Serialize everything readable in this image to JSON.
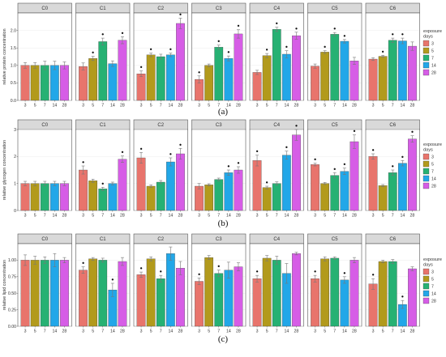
{
  "colors": {
    "days": [
      "#e8746c",
      "#b29a1c",
      "#26b173",
      "#22a7e8",
      "#d65de6"
    ],
    "strip_bg": "#d9d9d9",
    "panel_border": "#555555",
    "grid": "#ececec",
    "error": "#777777"
  },
  "legend": {
    "title": "exposure\ndays",
    "labels": [
      "3",
      "5",
      "7",
      "14",
      "28"
    ]
  },
  "chart_data": [
    {
      "type": "bar",
      "caption": "(a)",
      "ylabel": "relative protein concentration",
      "ylim": [
        0,
        2.5
      ],
      "yticks": [
        0.0,
        0.5,
        1.0,
        1.5,
        2.0
      ],
      "facets": [
        "C0",
        "C1",
        "C2",
        "C3",
        "C4",
        "C5",
        "C6"
      ],
      "categories": [
        "3",
        "5",
        "7",
        "14",
        "28"
      ],
      "values": [
        [
          1.0,
          1.0,
          1.0,
          1.0,
          1.0
        ],
        [
          0.97,
          1.2,
          1.68,
          1.05,
          1.72
        ],
        [
          0.76,
          1.3,
          1.25,
          1.3,
          2.2
        ],
        [
          0.6,
          1.0,
          1.52,
          1.2,
          1.9
        ],
        [
          0.8,
          1.28,
          2.03,
          1.32,
          1.85
        ],
        [
          0.98,
          1.38,
          1.89,
          1.69,
          1.13
        ],
        [
          1.18,
          1.26,
          1.72,
          1.7,
          1.55
        ]
      ],
      "errors": [
        [
          0.08,
          0.08,
          0.12,
          0.12,
          0.1
        ],
        [
          0.1,
          0.06,
          0.1,
          0.08,
          0.1
        ],
        [
          0.08,
          0.05,
          0.07,
          0.05,
          0.15
        ],
        [
          0.1,
          0.04,
          0.06,
          0.07,
          0.12
        ],
        [
          0.06,
          0.06,
          0.06,
          0.1,
          0.1
        ],
        [
          0.06,
          0.04,
          0.05,
          0.05,
          0.1
        ],
        [
          0.04,
          0.03,
          0.06,
          0.08,
          0.12
        ]
      ],
      "significant": [
        [
          false,
          false,
          false,
          false,
          false
        ],
        [
          false,
          true,
          true,
          false,
          true
        ],
        [
          true,
          true,
          false,
          true,
          true
        ],
        [
          true,
          false,
          true,
          true,
          true
        ],
        [
          false,
          true,
          true,
          true,
          true
        ],
        [
          false,
          true,
          true,
          true,
          false
        ],
        [
          false,
          true,
          true,
          true,
          false
        ]
      ]
    },
    {
      "type": "bar",
      "caption": "(b)",
      "ylabel": "relative glycogen concentration",
      "ylim": [
        0,
        3
      ],
      "yticks": [
        0,
        1,
        2,
        3
      ],
      "facets": [
        "C0",
        "C1",
        "C2",
        "C3",
        "C4",
        "C5",
        "C6"
      ],
      "categories": [
        "3",
        "5",
        "7",
        "14",
        "28"
      ],
      "values": [
        [
          1.0,
          1.0,
          1.0,
          1.0,
          1.0
        ],
        [
          1.5,
          1.1,
          0.8,
          1.0,
          1.9
        ],
        [
          1.95,
          0.9,
          1.05,
          1.8,
          2.1
        ],
        [
          0.9,
          0.95,
          1.15,
          1.4,
          1.5
        ],
        [
          1.85,
          0.85,
          1.0,
          2.05,
          2.8
        ],
        [
          1.7,
          1.0,
          1.3,
          1.45,
          2.55
        ],
        [
          2.0,
          0.92,
          1.4,
          1.75,
          2.65
        ]
      ],
      "errors": [
        [
          0.08,
          0.08,
          0.08,
          0.08,
          0.08
        ],
        [
          0.15,
          0.06,
          0.06,
          0.05,
          0.12
        ],
        [
          0.2,
          0.05,
          0.06,
          0.15,
          0.2
        ],
        [
          0.1,
          0.04,
          0.05,
          0.1,
          0.12
        ],
        [
          0.2,
          0.05,
          0.06,
          0.15,
          0.2
        ],
        [
          0.05,
          0.04,
          0.1,
          0.12,
          0.25
        ],
        [
          0.1,
          0.04,
          0.1,
          0.1,
          0.12
        ]
      ],
      "significant": [
        [
          false,
          false,
          false,
          false,
          false
        ],
        [
          true,
          false,
          true,
          false,
          true
        ],
        [
          true,
          false,
          false,
          true,
          true
        ],
        [
          false,
          false,
          false,
          true,
          true
        ],
        [
          true,
          true,
          false,
          true,
          true
        ],
        [
          true,
          false,
          true,
          true,
          true
        ],
        [
          true,
          false,
          true,
          true,
          true
        ]
      ]
    },
    {
      "type": "bar",
      "caption": "(c)",
      "ylabel": "relative lipid concentration",
      "ylim": [
        0,
        1.25
      ],
      "yticks": [
        0.0,
        0.25,
        0.5,
        0.75,
        1.0
      ],
      "facets": [
        "C0",
        "C1",
        "C2",
        "C3",
        "C4",
        "C5",
        "C6"
      ],
      "categories": [
        "3",
        "5",
        "7",
        "14",
        "28"
      ],
      "values": [
        [
          1.0,
          1.0,
          1.0,
          1.0,
          1.0
        ],
        [
          0.85,
          1.02,
          1.0,
          0.55,
          0.98
        ],
        [
          0.78,
          1.02,
          0.72,
          1.1,
          0.88
        ],
        [
          0.68,
          1.04,
          0.8,
          0.85,
          0.9
        ],
        [
          0.72,
          1.03,
          1.0,
          0.8,
          1.1
        ],
        [
          0.72,
          1.02,
          1.03,
          0.7,
          1.0
        ],
        [
          0.64,
          0.98,
          0.98,
          0.33,
          0.87
        ]
      ],
      "errors": [
        [
          0.08,
          0.06,
          0.05,
          0.1,
          0.04
        ],
        [
          0.05,
          0.02,
          0.03,
          0.1,
          0.06
        ],
        [
          0.04,
          0.03,
          0.05,
          0.1,
          0.1
        ],
        [
          0.05,
          0.03,
          0.05,
          0.12,
          0.06
        ],
        [
          0.05,
          0.04,
          0.06,
          0.15,
          0.02
        ],
        [
          0.05,
          0.03,
          0.02,
          0.05,
          0.04
        ],
        [
          0.08,
          0.02,
          0.03,
          0.06,
          0.03
        ]
      ],
      "significant": [
        [
          false,
          false,
          false,
          false,
          false
        ],
        [
          true,
          false,
          false,
          true,
          false
        ],
        [
          true,
          false,
          true,
          false,
          false
        ],
        [
          true,
          false,
          true,
          false,
          false
        ],
        [
          true,
          false,
          false,
          false,
          false
        ],
        [
          true,
          false,
          false,
          true,
          false
        ],
        [
          true,
          false,
          false,
          true,
          false
        ]
      ]
    }
  ]
}
